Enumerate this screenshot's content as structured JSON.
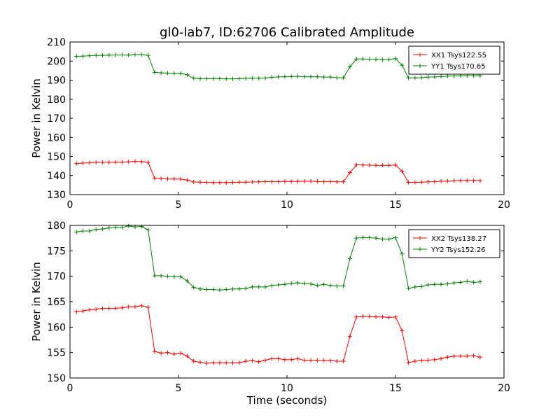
{
  "title": "gl0-lab7, ID:62706 Calibrated Amplitude",
  "chart_data": [
    {
      "type": "line",
      "title": "gl0-lab7, ID:62706 Calibrated Amplitude",
      "xlabel": "",
      "ylabel": "Power in Kelvin",
      "xlim": [
        0,
        20
      ],
      "ylim": [
        130,
        210
      ],
      "xticks": [
        "0",
        "5",
        "10",
        "15",
        "20"
      ],
      "yticks": [
        "130",
        "140",
        "150",
        "160",
        "170",
        "180",
        "190",
        "200",
        "210"
      ],
      "grid": false,
      "legend_position": "top-right",
      "x": [
        0.3,
        0.6,
        0.9,
        1.2,
        1.5,
        1.8,
        2.1,
        2.4,
        2.7,
        3.0,
        3.3,
        3.6,
        3.9,
        4.2,
        4.5,
        4.8,
        5.1,
        5.4,
        5.7,
        6.0,
        6.3,
        6.6,
        6.9,
        7.2,
        7.5,
        7.8,
        8.1,
        8.4,
        8.7,
        9.0,
        9.3,
        9.6,
        9.9,
        10.2,
        10.5,
        10.8,
        11.1,
        11.4,
        11.7,
        12.0,
        12.3,
        12.6,
        12.9,
        13.2,
        13.5,
        13.8,
        14.1,
        14.4,
        14.7,
        15.0,
        15.3,
        15.6,
        15.9,
        16.2,
        16.5,
        16.8,
        17.1,
        17.4,
        17.7,
        18.0,
        18.3,
        18.6,
        18.9
      ],
      "series": [
        {
          "name": "XX1 Tsys122.55",
          "color": "#ff0000",
          "values": [
            146.3,
            146.5,
            146.7,
            146.9,
            146.9,
            146.9,
            147.0,
            147.0,
            147.2,
            147.4,
            147.3,
            146.9,
            138.6,
            138.4,
            138.2,
            138.2,
            138.1,
            137.6,
            136.6,
            136.5,
            136.4,
            136.3,
            136.3,
            136.3,
            136.4,
            136.5,
            136.5,
            136.6,
            136.7,
            136.8,
            136.8,
            136.8,
            136.9,
            136.9,
            136.9,
            137.0,
            137.0,
            136.9,
            136.8,
            136.8,
            136.7,
            136.7,
            141.5,
            145.6,
            145.5,
            145.4,
            145.3,
            145.3,
            145.3,
            145.5,
            142.3,
            136.4,
            136.4,
            136.5,
            136.7,
            136.8,
            137.0,
            137.1,
            137.3,
            137.4,
            137.4,
            137.4,
            137.3
          ]
        },
        {
          "name": "YY1 Tsys170.65",
          "color": "#008000",
          "values": [
            202.5,
            202.6,
            202.8,
            203.0,
            203.0,
            203.1,
            203.2,
            203.2,
            203.1,
            203.4,
            203.4,
            203.0,
            194.1,
            193.8,
            193.7,
            193.6,
            193.6,
            192.8,
            191.0,
            190.8,
            190.8,
            190.8,
            190.8,
            190.7,
            190.7,
            190.8,
            190.9,
            191.0,
            191.0,
            191.1,
            191.5,
            191.7,
            191.8,
            191.9,
            192.0,
            191.8,
            191.8,
            191.8,
            191.6,
            191.6,
            191.3,
            191.2,
            197.0,
            201.1,
            201.1,
            201.0,
            200.9,
            200.7,
            200.8,
            201.3,
            197.8,
            191.2,
            191.2,
            191.3,
            191.6,
            191.7,
            191.9,
            192.1,
            192.2,
            192.3,
            192.4,
            192.4,
            192.3
          ]
        }
      ]
    },
    {
      "type": "line",
      "title": "",
      "xlabel": "Time (seconds)",
      "ylabel": "Power in Kelvin",
      "xlim": [
        0,
        20
      ],
      "ylim": [
        150,
        180
      ],
      "xticks": [
        "0",
        "5",
        "10",
        "15",
        "20"
      ],
      "yticks": [
        "150",
        "155",
        "160",
        "165",
        "170",
        "175",
        "180"
      ],
      "grid": false,
      "legend_position": "top-right",
      "x": [
        0.3,
        0.6,
        0.9,
        1.2,
        1.5,
        1.8,
        2.1,
        2.4,
        2.7,
        3.0,
        3.3,
        3.6,
        3.9,
        4.2,
        4.5,
        4.8,
        5.1,
        5.4,
        5.7,
        6.0,
        6.3,
        6.6,
        6.9,
        7.2,
        7.5,
        7.8,
        8.1,
        8.4,
        8.7,
        9.0,
        9.3,
        9.6,
        9.9,
        10.2,
        10.5,
        10.8,
        11.1,
        11.4,
        11.7,
        12.0,
        12.3,
        12.6,
        12.9,
        13.2,
        13.5,
        13.8,
        14.1,
        14.4,
        14.7,
        15.0,
        15.3,
        15.6,
        15.9,
        16.2,
        16.5,
        16.8,
        17.1,
        17.4,
        17.7,
        18.0,
        18.3,
        18.6,
        18.9
      ],
      "series": [
        {
          "name": "XX2 Tsys138.27",
          "color": "#ff0000",
          "values": [
            163.0,
            163.2,
            163.4,
            163.5,
            163.7,
            163.7,
            163.7,
            163.8,
            164.0,
            164.0,
            164.2,
            163.9,
            155.2,
            154.9,
            155.0,
            154.7,
            154.9,
            154.3,
            153.3,
            153.1,
            152.9,
            153.0,
            153.0,
            153.0,
            153.0,
            153.0,
            153.3,
            153.4,
            153.2,
            153.5,
            153.8,
            153.8,
            153.6,
            153.6,
            153.8,
            153.5,
            153.5,
            153.5,
            153.5,
            153.4,
            153.3,
            153.3,
            158.2,
            162.0,
            162.1,
            162.1,
            162.0,
            162.0,
            161.9,
            162.0,
            159.3,
            153.0,
            153.3,
            153.4,
            153.5,
            153.6,
            153.8,
            154.1,
            154.3,
            154.3,
            154.3,
            154.4,
            154.1
          ]
        },
        {
          "name": "YY2 Tsys152.26",
          "color": "#008000",
          "values": [
            178.7,
            178.9,
            178.9,
            179.2,
            179.3,
            179.5,
            179.6,
            179.6,
            179.9,
            179.7,
            179.8,
            179.1,
            170.1,
            170.1,
            170.0,
            169.9,
            169.9,
            169.1,
            167.8,
            167.5,
            167.4,
            167.4,
            167.3,
            167.4,
            167.5,
            167.5,
            167.6,
            167.9,
            167.9,
            167.9,
            168.2,
            168.3,
            168.4,
            168.6,
            168.7,
            168.6,
            168.5,
            168.2,
            168.4,
            168.2,
            168.1,
            168.1,
            173.5,
            177.5,
            177.6,
            177.6,
            177.5,
            177.3,
            177.3,
            177.6,
            174.4,
            167.6,
            167.9,
            168.0,
            168.3,
            168.4,
            168.4,
            168.5,
            168.7,
            168.8,
            169.0,
            168.8,
            168.9
          ]
        }
      ]
    }
  ]
}
